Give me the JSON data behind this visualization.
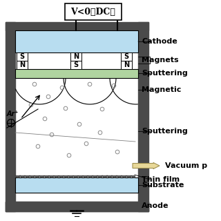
{
  "bg_color": "#ffffff",
  "chamber_color": "#4a4a4a",
  "cathode_color": "#b8ddf0",
  "green_target_color": "#b0d4a0",
  "substrate_color": "#b8ddf0",
  "title": "V<0（DC）",
  "label_cathode": "Cathode",
  "label_magnets": "Magnets",
  "label_sputtering1": "Sputtering",
  "label_magnetic": "Magnetic  ",
  "label_sputtering2": "Sputtering",
  "label_vacuum": "Vacuum p",
  "label_thinfilm": "Thin film",
  "label_substrate": "Substrate",
  "label_anode": "Anode",
  "label_ar": "Ar⁺",
  "font_size_labels": 8,
  "font_size_title": 9,
  "font_size_mag": 6,
  "arrow_fill": "#e8d898",
  "arrow_edge": "#b8a850"
}
